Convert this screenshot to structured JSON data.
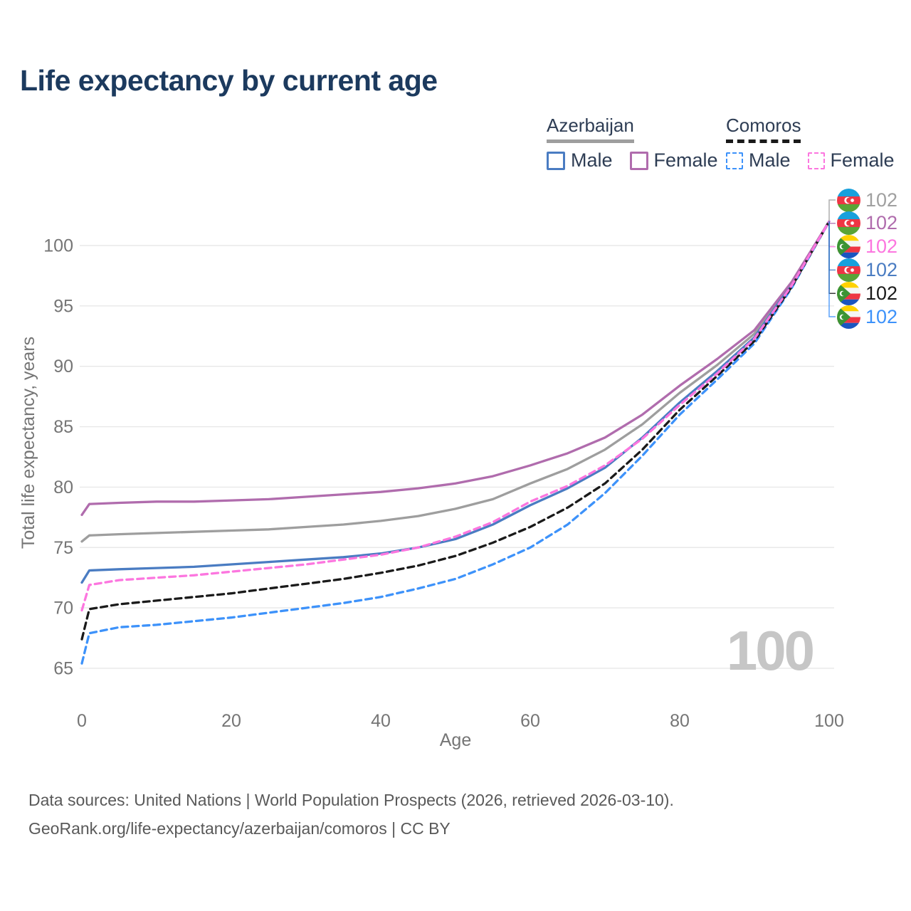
{
  "title": "Life expectancy by current age",
  "legend": {
    "groups": [
      {
        "country": "Azerbaijan",
        "line_style": "solid",
        "underline_color": "#9e9e9e",
        "items": [
          {
            "label": "Male",
            "color": "#4a7cc2"
          },
          {
            "label": "Female",
            "color": "#b06cad"
          }
        ]
      },
      {
        "country": "Comoros",
        "line_style": "dashed",
        "underline_color": "#1a1a1a",
        "items": [
          {
            "label": "Male",
            "color": "#3d92fa"
          },
          {
            "label": "Female",
            "color": "#fc76df"
          }
        ]
      }
    ]
  },
  "chart_data": {
    "type": "line",
    "xlabel": "Age",
    "ylabel": "Total life expectancy, years",
    "watermark": "100",
    "x_ticks": [
      0,
      20,
      40,
      60,
      80,
      100
    ],
    "y_ticks": [
      65,
      70,
      75,
      80,
      85,
      90,
      95,
      100
    ],
    "xlim": [
      0,
      100
    ],
    "ylim": [
      65,
      102
    ],
    "grid": "horizontal-only",
    "x": [
      0,
      1,
      5,
      10,
      15,
      20,
      25,
      30,
      35,
      40,
      45,
      50,
      55,
      60,
      65,
      70,
      75,
      80,
      85,
      90,
      95,
      100
    ],
    "series": [
      {
        "name": "Azerbaijan Both sexes",
        "country": "Azerbaijan",
        "sex": "Both",
        "color": "#9e9e9e",
        "dashed": false,
        "values": [
          75.5,
          76.0,
          76.1,
          76.2,
          76.3,
          76.4,
          76.5,
          76.7,
          76.9,
          77.2,
          77.6,
          78.2,
          79.0,
          80.3,
          81.5,
          83.1,
          85.2,
          87.8,
          90.1,
          92.7,
          96.9,
          102
        ]
      },
      {
        "name": "Azerbaijan Male",
        "country": "Azerbaijan",
        "sex": "Male",
        "color": "#4a7cc2",
        "dashed": false,
        "values": [
          72.1,
          73.1,
          73.2,
          73.3,
          73.4,
          73.6,
          73.8,
          74.0,
          74.2,
          74.5,
          75.0,
          75.7,
          76.9,
          78.5,
          79.9,
          81.6,
          84.1,
          87.0,
          89.6,
          92.4,
          96.8,
          102
        ]
      },
      {
        "name": "Azerbaijan Female",
        "country": "Azerbaijan",
        "sex": "Female",
        "color": "#b06cad",
        "dashed": false,
        "values": [
          77.7,
          78.6,
          78.7,
          78.8,
          78.8,
          78.9,
          79.0,
          79.2,
          79.4,
          79.6,
          79.9,
          80.3,
          80.9,
          81.8,
          82.8,
          84.1,
          86.0,
          88.4,
          90.6,
          93.0,
          97.0,
          102
        ]
      },
      {
        "name": "Comoros Male",
        "country": "Comoros",
        "sex": "Male",
        "color": "#3d92fa",
        "dashed": true,
        "values": [
          65.4,
          67.9,
          68.4,
          68.6,
          68.9,
          69.2,
          69.6,
          70.0,
          70.4,
          70.9,
          71.6,
          72.4,
          73.6,
          75.0,
          76.9,
          79.5,
          82.6,
          86.0,
          88.9,
          91.9,
          96.5,
          102
        ]
      },
      {
        "name": "Comoros Both sexes",
        "country": "Comoros",
        "sex": "Both",
        "color": "#1a1a1a",
        "dashed": true,
        "values": [
          67.4,
          69.9,
          70.3,
          70.6,
          70.9,
          71.2,
          71.6,
          72.0,
          72.4,
          72.9,
          73.5,
          74.3,
          75.4,
          76.7,
          78.3,
          80.3,
          83.1,
          86.4,
          89.2,
          92.1,
          96.6,
          102
        ]
      },
      {
        "name": "Comoros Female",
        "country": "Comoros",
        "sex": "Female",
        "color": "#fc76df",
        "dashed": true,
        "values": [
          69.8,
          71.9,
          72.3,
          72.5,
          72.7,
          73.0,
          73.3,
          73.6,
          74.0,
          74.4,
          75.0,
          75.9,
          77.1,
          78.8,
          80.1,
          81.8,
          84.0,
          86.8,
          89.4,
          92.3,
          96.7,
          102
        ]
      }
    ]
  },
  "end_labels": [
    {
      "flag": "azerbaijan",
      "value": "102",
      "color": "#a0a0a0"
    },
    {
      "flag": "azerbaijan",
      "value": "102",
      "color": "#b06cad"
    },
    {
      "flag": "comoros",
      "value": "102",
      "color": "#fc76df"
    },
    {
      "flag": "azerbaijan",
      "value": "102",
      "color": "#4a7cc2"
    },
    {
      "flag": "comoros",
      "value": "102",
      "color": "#1a1a1a"
    },
    {
      "flag": "comoros",
      "value": "102",
      "color": "#3d92fa"
    }
  ],
  "footer": {
    "line1": "Data sources: United Nations | World Population Prospects (2026, retrieved 2026-03-10).",
    "line2": "GeoRank.org/life-expectancy/azerbaijan/comoros | CC BY"
  }
}
